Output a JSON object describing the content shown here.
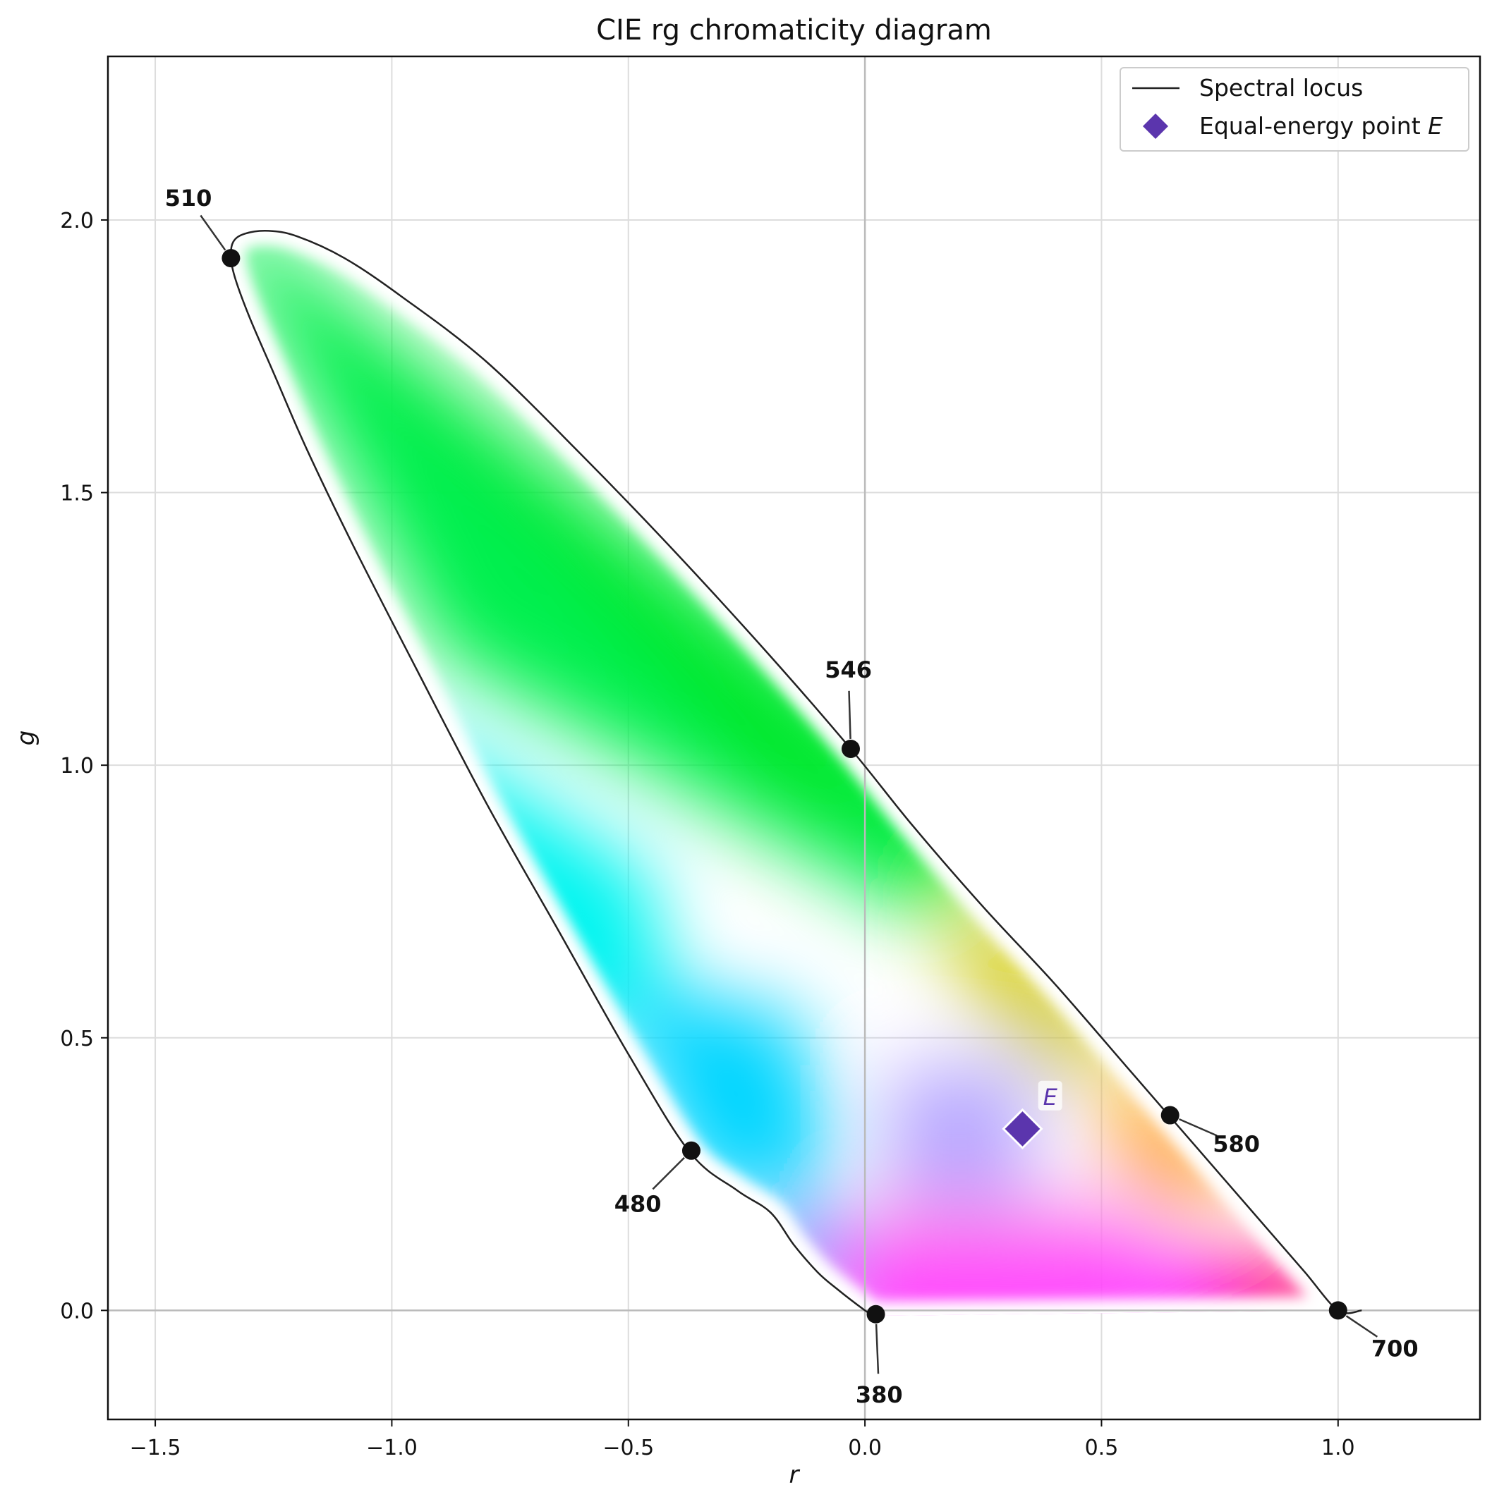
{
  "chart_data": {
    "type": "line",
    "title": "CIE rg chromaticity diagram",
    "xlabel": "r",
    "ylabel": "g",
    "xlim": [
      -1.6,
      1.3
    ],
    "ylim": [
      -0.2,
      2.3
    ],
    "x_ticks": [
      -1.5,
      -1.0,
      -0.5,
      0.0,
      0.5,
      1.0
    ],
    "x_tick_labels": [
      "−1.5",
      "−1.0",
      "−0.5",
      "0.0",
      "0.5",
      "1.0"
    ],
    "y_ticks": [
      0.0,
      0.5,
      1.0,
      1.5,
      2.0
    ],
    "y_tick_labels": [
      "0.0",
      "0.5",
      "1.0",
      "1.5",
      "2.0"
    ],
    "grid": true,
    "legend_position": "top-right",
    "series": [
      {
        "name": "Spectral locus",
        "kind": "line",
        "color": "#222222",
        "points": [
          [
            0.02,
            -0.01
          ],
          [
            0.0,
            0.0
          ],
          [
            -0.06,
            0.04
          ],
          [
            -0.1,
            0.07
          ],
          [
            -0.15,
            0.12
          ],
          [
            -0.2,
            0.18
          ],
          [
            -0.27,
            0.22
          ],
          [
            -0.37,
            0.29
          ],
          [
            -0.5,
            0.47
          ],
          [
            -0.65,
            0.7
          ],
          [
            -0.8,
            0.93
          ],
          [
            -0.95,
            1.18
          ],
          [
            -1.08,
            1.4
          ],
          [
            -1.18,
            1.58
          ],
          [
            -1.25,
            1.72
          ],
          [
            -1.3,
            1.82
          ],
          [
            -1.33,
            1.89
          ],
          [
            -1.34,
            1.93
          ],
          [
            -1.335,
            1.96
          ],
          [
            -1.31,
            1.975
          ],
          [
            -1.26,
            1.98
          ],
          [
            -1.2,
            1.97
          ],
          [
            -1.1,
            1.93
          ],
          [
            -0.98,
            1.86
          ],
          [
            -0.8,
            1.74
          ],
          [
            -0.6,
            1.57
          ],
          [
            -0.4,
            1.39
          ],
          [
            -0.2,
            1.2
          ],
          [
            -0.03,
            1.03
          ],
          [
            0.1,
            0.89
          ],
          [
            0.25,
            0.74
          ],
          [
            0.4,
            0.6
          ],
          [
            0.55,
            0.45
          ],
          [
            0.645,
            0.355
          ],
          [
            0.75,
            0.25
          ],
          [
            0.85,
            0.15
          ],
          [
            0.93,
            0.07
          ],
          [
            1.0,
            0.0
          ],
          [
            1.05,
            0.0
          ]
        ]
      },
      {
        "name": "Equal-energy point E",
        "kind": "marker",
        "color": "#5b35ad",
        "points": [
          [
            0.333,
            0.333
          ]
        ]
      }
    ],
    "wavelength_markers": [
      {
        "label": "380",
        "r": 0.023,
        "g": -0.007,
        "label_r": 0.03,
        "label_g": -0.155
      },
      {
        "label": "480",
        "r": -0.367,
        "g": 0.293,
        "label_r": -0.48,
        "label_g": 0.195
      },
      {
        "label": "510",
        "r": -1.34,
        "g": 1.93,
        "label_r": -1.43,
        "label_g": 2.04
      },
      {
        "label": "546",
        "r": -0.03,
        "g": 1.03,
        "label_r": -0.035,
        "label_g": 1.175
      },
      {
        "label": "580",
        "r": 0.645,
        "g": 0.358,
        "label_r": 0.785,
        "label_g": 0.305
      },
      {
        "label": "700",
        "r": 1.0,
        "g": 0.0,
        "label_r": 1.12,
        "label_g": -0.07
      }
    ],
    "annotations": [
      {
        "text": "E",
        "r": 0.39,
        "g": 0.39
      }
    ],
    "fill_colors": {
      "green_top": "#00e61a",
      "green": "#00f050",
      "cyan": "#00f5f0",
      "blue_cyan": "#00d5ff",
      "blue": "#0060ff",
      "magenta": "#ff00ff",
      "pink_red": "#ff0070",
      "orange": "#ffa020",
      "yellow": "#d0c800",
      "lavender": "#b8a8ff",
      "light_magenta": "#ff88ee"
    },
    "legend": [
      {
        "label": "Spectral locus",
        "symbol": "line",
        "color": "#222222"
      },
      {
        "label": "Equal-energy point ",
        "label_italic": "E",
        "symbol": "diamond",
        "color": "#5b35ad"
      }
    ]
  }
}
